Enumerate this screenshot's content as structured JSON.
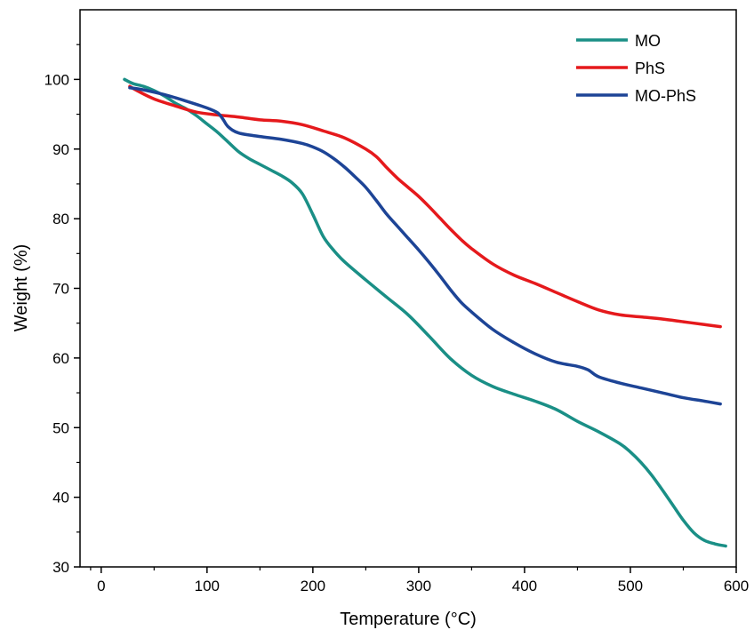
{
  "chart_data": {
    "type": "line",
    "title": "",
    "xlabel": "Temperature (°C)",
    "ylabel": "Weight (%)",
    "xlim": [
      -20,
      600
    ],
    "ylim": [
      30,
      110
    ],
    "x_ticks": [
      0,
      100,
      200,
      300,
      400,
      500,
      600
    ],
    "y_ticks": [
      30,
      40,
      50,
      60,
      70,
      80,
      90,
      100
    ],
    "grid": false,
    "legend_position": "top-right",
    "series": [
      {
        "name": "MO",
        "color": "#1a8f86",
        "points": [
          [
            22,
            100
          ],
          [
            30,
            99.4
          ],
          [
            40,
            99
          ],
          [
            50,
            98.4
          ],
          [
            60,
            97.6
          ],
          [
            70,
            96.6
          ],
          [
            80,
            95.8
          ],
          [
            90,
            94.8
          ],
          [
            100,
            93.6
          ],
          [
            110,
            92.4
          ],
          [
            120,
            91
          ],
          [
            130,
            89.6
          ],
          [
            140,
            88.6
          ],
          [
            150,
            87.8
          ],
          [
            160,
            87
          ],
          [
            170,
            86.2
          ],
          [
            180,
            85.2
          ],
          [
            190,
            83.6
          ],
          [
            200,
            80.6
          ],
          [
            210,
            77.4
          ],
          [
            220,
            75.4
          ],
          [
            230,
            73.8
          ],
          [
            250,
            71.2
          ],
          [
            270,
            68.7
          ],
          [
            290,
            66.2
          ],
          [
            310,
            63.1
          ],
          [
            330,
            59.9
          ],
          [
            350,
            57.5
          ],
          [
            370,
            55.9
          ],
          [
            390,
            54.8
          ],
          [
            410,
            53.8
          ],
          [
            430,
            52.6
          ],
          [
            450,
            50.9
          ],
          [
            470,
            49.4
          ],
          [
            490,
            47.7
          ],
          [
            500,
            46.5
          ],
          [
            510,
            45
          ],
          [
            520,
            43.2
          ],
          [
            530,
            41.1
          ],
          [
            540,
            38.9
          ],
          [
            550,
            36.7
          ],
          [
            560,
            34.9
          ],
          [
            570,
            33.8
          ],
          [
            580,
            33.3
          ],
          [
            590,
            33
          ]
        ]
      },
      {
        "name": "PhS",
        "color": "#e5191c",
        "points": [
          [
            27,
            99
          ],
          [
            35,
            98.3
          ],
          [
            50,
            97.2
          ],
          [
            70,
            96.2
          ],
          [
            90,
            95.3
          ],
          [
            110,
            94.9
          ],
          [
            130,
            94.6
          ],
          [
            150,
            94.2
          ],
          [
            170,
            94
          ],
          [
            190,
            93.5
          ],
          [
            210,
            92.6
          ],
          [
            230,
            91.6
          ],
          [
            250,
            90
          ],
          [
            260,
            88.9
          ],
          [
            270,
            87.3
          ],
          [
            280,
            85.8
          ],
          [
            290,
            84.5
          ],
          [
            300,
            83.2
          ],
          [
            310,
            81.7
          ],
          [
            320,
            80.1
          ],
          [
            330,
            78.5
          ],
          [
            340,
            77
          ],
          [
            350,
            75.7
          ],
          [
            370,
            73.5
          ],
          [
            390,
            71.9
          ],
          [
            410,
            70.7
          ],
          [
            430,
            69.4
          ],
          [
            450,
            68.1
          ],
          [
            470,
            66.9
          ],
          [
            490,
            66.2
          ],
          [
            510,
            65.9
          ],
          [
            530,
            65.6
          ],
          [
            550,
            65.2
          ],
          [
            570,
            64.8
          ],
          [
            585,
            64.5
          ]
        ]
      },
      {
        "name": "MO-PhS",
        "color": "#1d4496",
        "points": [
          [
            27,
            98.8
          ],
          [
            40,
            98.5
          ],
          [
            60,
            97.8
          ],
          [
            80,
            96.9
          ],
          [
            100,
            95.9
          ],
          [
            110,
            95.2
          ],
          [
            115,
            94.3
          ],
          [
            120,
            93.2
          ],
          [
            130,
            92.3
          ],
          [
            150,
            91.8
          ],
          [
            170,
            91.4
          ],
          [
            190,
            90.8
          ],
          [
            200,
            90.3
          ],
          [
            210,
            89.6
          ],
          [
            220,
            88.6
          ],
          [
            230,
            87.4
          ],
          [
            240,
            86
          ],
          [
            250,
            84.5
          ],
          [
            260,
            82.6
          ],
          [
            270,
            80.6
          ],
          [
            280,
            78.9
          ],
          [
            290,
            77.2
          ],
          [
            300,
            75.5
          ],
          [
            310,
            73.7
          ],
          [
            320,
            71.8
          ],
          [
            330,
            69.8
          ],
          [
            340,
            68
          ],
          [
            350,
            66.6
          ],
          [
            370,
            64.1
          ],
          [
            390,
            62.2
          ],
          [
            410,
            60.6
          ],
          [
            430,
            59.4
          ],
          [
            450,
            58.8
          ],
          [
            460,
            58.3
          ],
          [
            470,
            57.3
          ],
          [
            490,
            56.4
          ],
          [
            510,
            55.7
          ],
          [
            530,
            55
          ],
          [
            550,
            54.3
          ],
          [
            570,
            53.8
          ],
          [
            585,
            53.4
          ]
        ]
      }
    ]
  }
}
